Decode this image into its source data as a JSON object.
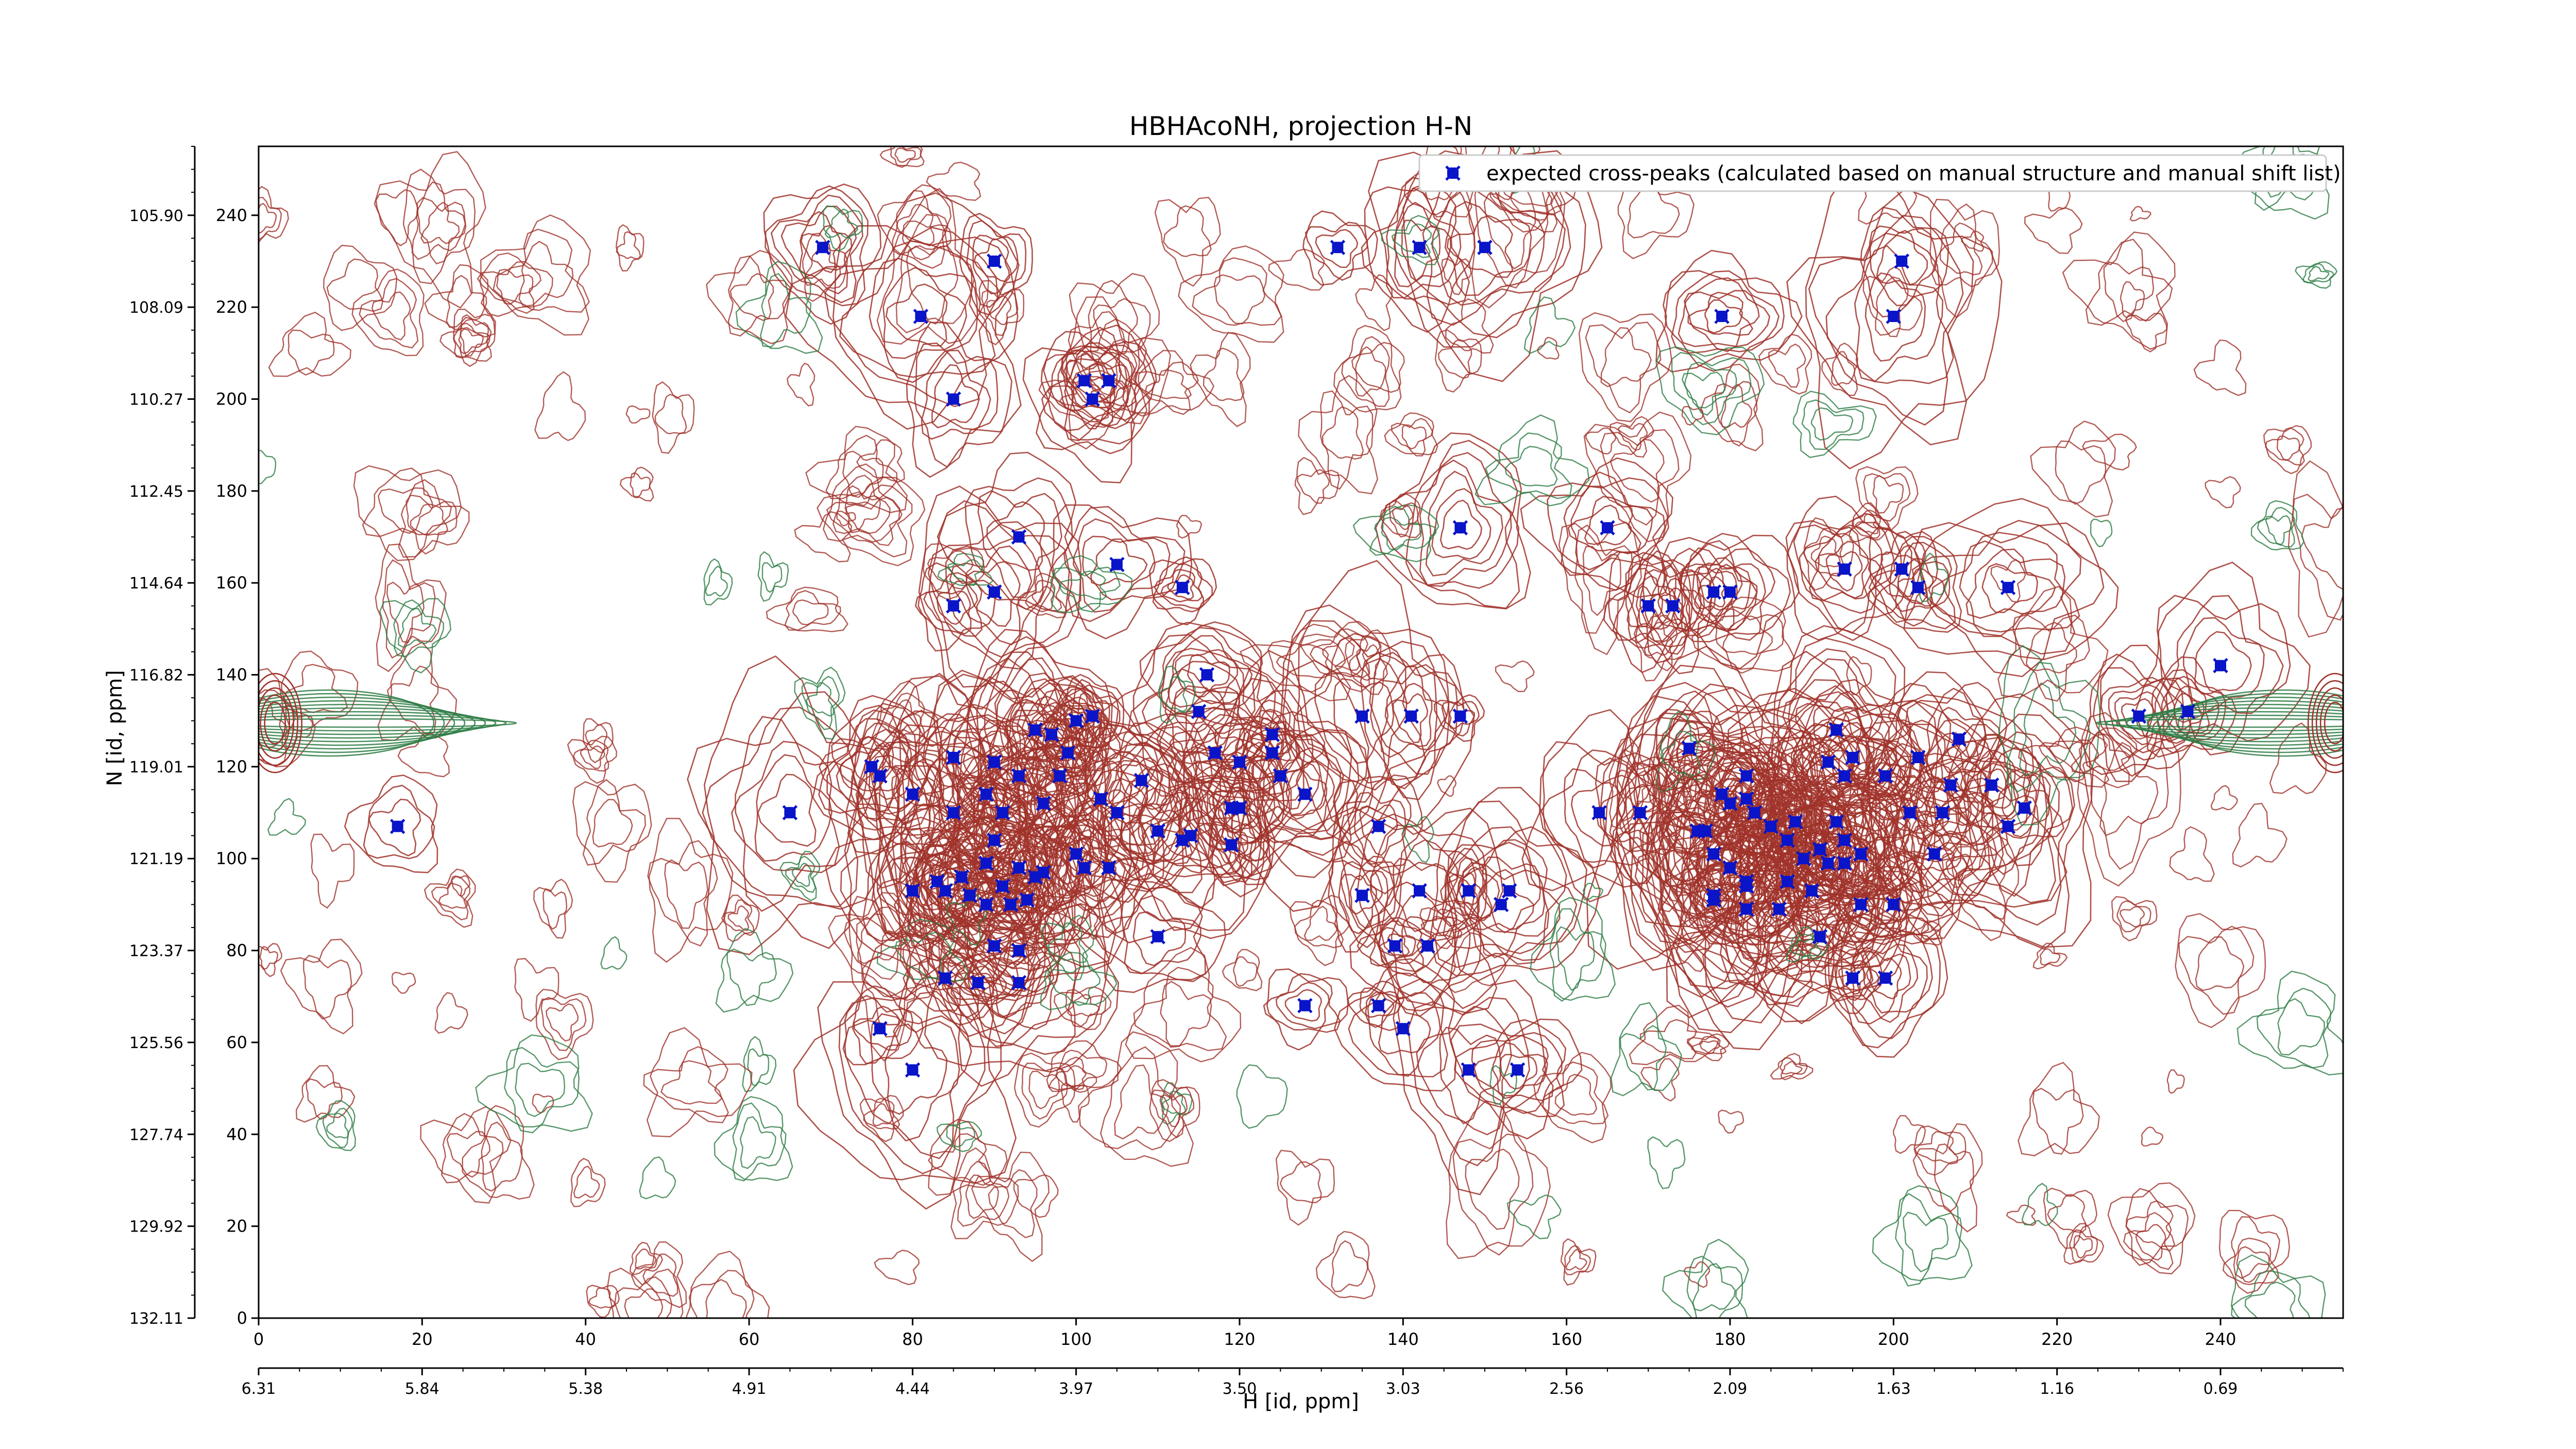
{
  "chart_data": {
    "type": "scatter",
    "title": "HBHAcoNH, projection H-N",
    "xlabel": "H [id, ppm]",
    "ylabel": "N [id, ppm]",
    "xlim": [
      0,
      255
    ],
    "ylim": [
      0,
      255
    ],
    "x_index_ticks": [
      "0",
      "20",
      "40",
      "60",
      "80",
      "100",
      "120",
      "140",
      "160",
      "180",
      "200",
      "220",
      "240"
    ],
    "x_ppm_ticks": [
      "6.31",
      "5.84",
      "5.38",
      "4.91",
      "4.44",
      "3.97",
      "3.50",
      "3.03",
      "2.56",
      "2.09",
      "1.63",
      "1.16",
      "0.69"
    ],
    "y_index_ticks": [
      "0",
      "20",
      "40",
      "60",
      "80",
      "100",
      "120",
      "140",
      "160",
      "180",
      "200",
      "220",
      "240"
    ],
    "y_ppm_ticks": [
      "132.11",
      "129.92",
      "127.74",
      "125.56",
      "123.37",
      "121.19",
      "119.01",
      "116.82",
      "114.64",
      "112.45",
      "110.27",
      "108.09",
      "105.90"
    ],
    "legend": {
      "placement": "top-right",
      "label": "expected cross-peaks (calculated based on manual structure and manual shift list)"
    },
    "colors": {
      "positive_contours": "#a0322a",
      "negative_contours": "#2e7d45",
      "peaks": "#0a14c8"
    },
    "series": [
      {
        "name": "expected cross-peaks (calculated based on manual structure and manual shift list)",
        "points": [
          [
            69,
            233
          ],
          [
            90,
            230
          ],
          [
            81,
            218
          ],
          [
            85,
            200
          ],
          [
            101,
            204
          ],
          [
            104,
            204
          ],
          [
            102,
            200
          ],
          [
            93,
            170
          ],
          [
            105,
            164
          ],
          [
            113,
            159
          ],
          [
            90,
            158
          ],
          [
            85,
            155
          ],
          [
            116,
            140
          ],
          [
            115,
            132
          ],
          [
            117,
            123
          ],
          [
            124,
            123
          ],
          [
            75,
            120
          ],
          [
            76,
            118
          ],
          [
            80,
            114
          ],
          [
            65,
            110
          ],
          [
            85,
            110
          ],
          [
            91,
            110
          ],
          [
            96,
            112
          ],
          [
            103,
            113
          ],
          [
            105,
            110
          ],
          [
            98,
            118
          ],
          [
            99,
            123
          ],
          [
            95,
            128
          ],
          [
            97,
            127
          ],
          [
            100,
            130
          ],
          [
            102,
            131
          ],
          [
            108,
            117
          ],
          [
            110,
            106
          ],
          [
            113,
            104
          ],
          [
            114,
            105
          ],
          [
            119,
            103
          ],
          [
            119,
            111
          ],
          [
            85,
            122
          ],
          [
            90,
            121
          ],
          [
            93,
            118
          ],
          [
            89,
            114
          ],
          [
            90,
            104
          ],
          [
            89,
            99
          ],
          [
            93,
            98
          ],
          [
            95,
            96
          ],
          [
            96,
            97
          ],
          [
            91,
            94
          ],
          [
            86,
            96
          ],
          [
            83,
            95
          ],
          [
            84,
            93
          ],
          [
            80,
            93
          ],
          [
            87,
            92
          ],
          [
            89,
            90
          ],
          [
            92,
            90
          ],
          [
            94,
            91
          ],
          [
            100,
            101
          ],
          [
            101,
            98
          ],
          [
            104,
            98
          ],
          [
            17,
            107
          ],
          [
            84,
            74
          ],
          [
            88,
            73
          ],
          [
            93,
            73
          ],
          [
            90,
            81
          ],
          [
            93,
            80
          ],
          [
            110,
            83
          ],
          [
            76,
            63
          ],
          [
            80,
            54
          ],
          [
            128,
            68
          ],
          [
            137,
            68
          ],
          [
            140,
            63
          ],
          [
            124,
            127
          ],
          [
            125,
            118
          ],
          [
            135,
            131
          ],
          [
            141,
            131
          ],
          [
            147,
            131
          ],
          [
            164,
            110
          ],
          [
            169,
            110
          ],
          [
            137,
            107
          ],
          [
            135,
            92
          ],
          [
            142,
            93
          ],
          [
            148,
            93
          ],
          [
            153,
            93
          ],
          [
            152,
            90
          ],
          [
            139,
            81
          ],
          [
            143,
            81
          ],
          [
            148,
            54
          ],
          [
            154,
            54
          ],
          [
            132,
            233
          ],
          [
            142,
            233
          ],
          [
            150,
            233
          ],
          [
            179,
            218
          ],
          [
            178,
            158
          ],
          [
            180,
            158
          ],
          [
            170,
            155
          ],
          [
            173,
            155
          ],
          [
            165,
            172
          ],
          [
            147,
            172
          ],
          [
            175,
            124
          ],
          [
            179,
            114
          ],
          [
            180,
            112
          ],
          [
            177,
            106
          ],
          [
            176,
            106
          ],
          [
            178,
            101
          ],
          [
            180,
            98
          ],
          [
            182,
            94
          ],
          [
            178,
            92
          ],
          [
            182,
            95
          ],
          [
            187,
            95
          ],
          [
            190,
            93
          ],
          [
            189,
            100
          ],
          [
            194,
            99
          ],
          [
            196,
            101
          ],
          [
            187,
            104
          ],
          [
            183,
            110
          ],
          [
            185,
            107
          ],
          [
            188,
            108
          ],
          [
            193,
            108
          ],
          [
            194,
            104
          ],
          [
            192,
            99
          ],
          [
            191,
            102
          ],
          [
            182,
            113
          ],
          [
            193,
            128
          ],
          [
            195,
            122
          ],
          [
            192,
            121
          ],
          [
            194,
            118
          ],
          [
            199,
            118
          ],
          [
            178,
            91
          ],
          [
            182,
            89
          ],
          [
            186,
            89
          ],
          [
            191,
            83
          ],
          [
            196,
            90
          ],
          [
            200,
            90
          ],
          [
            195,
            74
          ],
          [
            199,
            74
          ],
          [
            201,
            230
          ],
          [
            200,
            218
          ],
          [
            182,
            118
          ],
          [
            194,
            163
          ],
          [
            201,
            163
          ],
          [
            203,
            159
          ],
          [
            214,
            159
          ],
          [
            205,
            101
          ],
          [
            202,
            110
          ],
          [
            206,
            110
          ],
          [
            207,
            116
          ],
          [
            212,
            116
          ],
          [
            208,
            126
          ],
          [
            203,
            122
          ],
          [
            214,
            107
          ],
          [
            230,
            131
          ],
          [
            236,
            132
          ],
          [
            240,
            142
          ],
          [
            216,
            111
          ],
          [
            120,
            121
          ],
          [
            120,
            111
          ],
          [
            128,
            114
          ]
        ]
      }
    ]
  }
}
